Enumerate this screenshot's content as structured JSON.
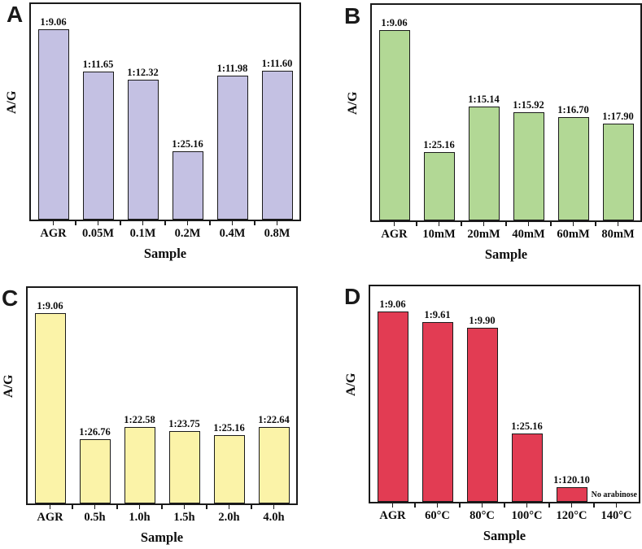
{
  "figure": {
    "xlabel": "Sample",
    "ylabel": "A/G"
  },
  "chart_data": [
    {
      "type": "bar",
      "panel_letter": "A",
      "xlabel": "Sample",
      "ylabel": "A/G",
      "categories": [
        "AGR",
        "0.05M",
        "0.1M",
        "0.2M",
        "0.4M",
        "0.8M"
      ],
      "bar_labels": [
        "1:9.06",
        "1:11.65",
        "1:12.32",
        "1:25.16",
        "1:11.98",
        "1:11.60"
      ],
      "ratios": [
        9.06,
        11.65,
        12.32,
        25.16,
        11.98,
        11.6
      ],
      "values": [
        0.1104,
        0.0858,
        0.0812,
        0.0397,
        0.0835,
        0.0862
      ],
      "notes": [
        null,
        null,
        null,
        null,
        null,
        null
      ],
      "ylim": [
        0,
        0.125
      ],
      "bar_color": "#c4c1e3",
      "grid": "off",
      "legend": "none"
    },
    {
      "type": "bar",
      "panel_letter": "B",
      "xlabel": "Sample",
      "ylabel": "A/G",
      "categories": [
        "AGR",
        "10mM",
        "20mM",
        "40mM",
        "60mM",
        "80mM"
      ],
      "bar_labels": [
        "1:9.06",
        "1:25.16",
        "1:15.14",
        "1:15.92",
        "1:16.70",
        "1:17.90"
      ],
      "ratios": [
        9.06,
        25.16,
        15.14,
        15.92,
        16.7,
        17.9
      ],
      "values": [
        0.1104,
        0.0397,
        0.0661,
        0.0628,
        0.0599,
        0.0559
      ],
      "notes": [
        null,
        null,
        null,
        null,
        null,
        null
      ],
      "ylim": [
        0,
        0.125
      ],
      "bar_color": "#b2d895",
      "grid": "off",
      "legend": "none"
    },
    {
      "type": "bar",
      "panel_letter": "C",
      "xlabel": "Sample",
      "ylabel": "A/G",
      "categories": [
        "AGR",
        "0.5h",
        "1.0h",
        "1.5h",
        "2.0h",
        "4.0h"
      ],
      "bar_labels": [
        "1:9.06",
        "1:26.76",
        "1:22.58",
        "1:23.75",
        "1:25.16",
        "1:22.64"
      ],
      "ratios": [
        9.06,
        26.76,
        22.58,
        23.75,
        25.16,
        22.64
      ],
      "values": [
        0.1104,
        0.0374,
        0.0443,
        0.0421,
        0.0397,
        0.0442
      ],
      "notes": [
        null,
        null,
        null,
        null,
        null,
        null
      ],
      "ylim": [
        0,
        0.125
      ],
      "bar_color": "#fbf3a8",
      "grid": "off",
      "legend": "none"
    },
    {
      "type": "bar",
      "panel_letter": "D",
      "xlabel": "Sample",
      "ylabel": "A/G",
      "categories": [
        "AGR",
        "60°C",
        "80°C",
        "100°C",
        "120°C",
        "140°C"
      ],
      "bar_labels": [
        "1:9.06",
        "1:9.61",
        "1:9.90",
        "1:25.16",
        "1:120.10",
        null
      ],
      "ratios": [
        9.06,
        9.61,
        9.9,
        25.16,
        120.1,
        null
      ],
      "values": [
        0.1104,
        0.1041,
        0.101,
        0.0397,
        0.0083,
        null
      ],
      "notes": [
        null,
        null,
        null,
        null,
        null,
        "No arabinose"
      ],
      "ylim": [
        0,
        0.125
      ],
      "bar_color": "#e23c53",
      "grid": "off",
      "legend": "none"
    }
  ]
}
